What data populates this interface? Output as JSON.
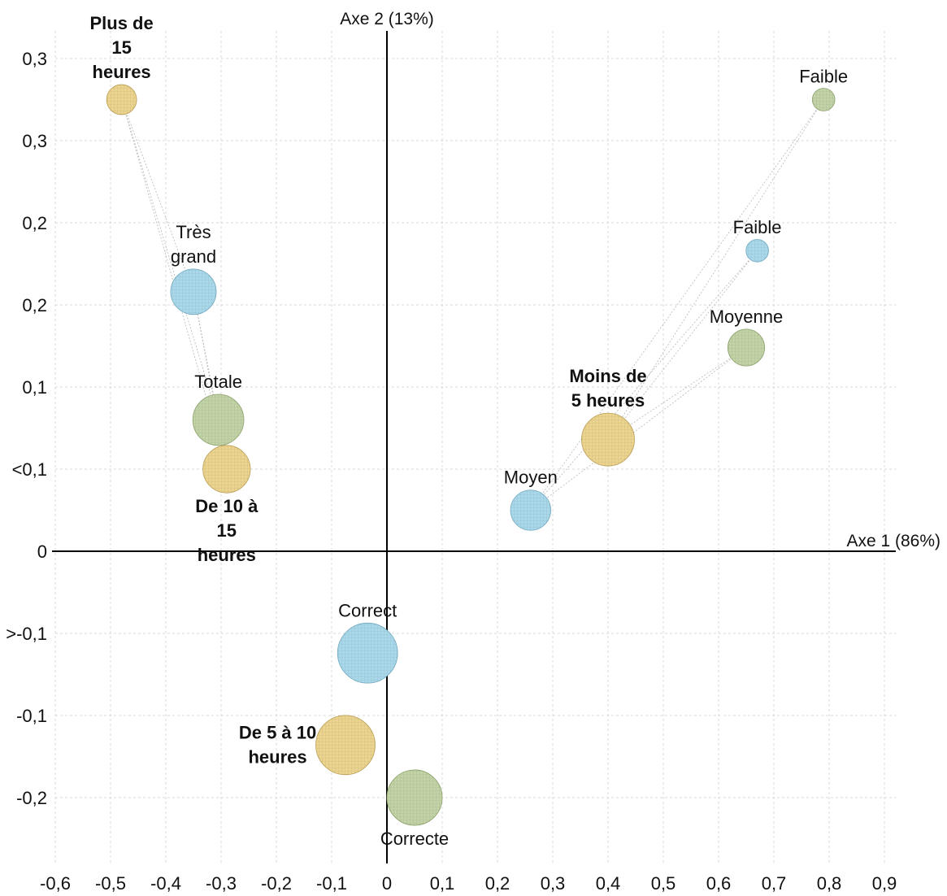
{
  "chart_data": {
    "type": "scatter",
    "subtype": "bubble",
    "title": "",
    "xlabel": "Axe 1 (86%)",
    "ylabel": "Axe 2 (13%)",
    "xlim": [
      -0.6,
      0.92
    ],
    "ylim": [
      -0.3,
      0.33
    ],
    "grid": true,
    "x_ticks": [
      {
        "value": -0.6,
        "label": "-0,6"
      },
      {
        "value": -0.5,
        "label": "-0,5"
      },
      {
        "value": -0.4,
        "label": "-0,4"
      },
      {
        "value": -0.3,
        "label": "-0,3"
      },
      {
        "value": -0.2,
        "label": "-0,2"
      },
      {
        "value": -0.1,
        "label": "-0,1"
      },
      {
        "value": 0.0,
        "label": "0"
      },
      {
        "value": 0.1,
        "label": "0,1"
      },
      {
        "value": 0.2,
        "label": "0,2"
      },
      {
        "value": 0.3,
        "label": "0,3"
      },
      {
        "value": 0.4,
        "label": "0,4"
      },
      {
        "value": 0.5,
        "label": "0,5"
      },
      {
        "value": 0.6,
        "label": "0,6"
      },
      {
        "value": 0.7,
        "label": "0,7"
      },
      {
        "value": 0.8,
        "label": "0,8"
      },
      {
        "value": 0.9,
        "label": "0,9"
      }
    ],
    "y_ticks": [
      {
        "value": 0.3,
        "label": "0,3"
      },
      {
        "value": 0.25,
        "label": "0,3"
      },
      {
        "value": 0.2,
        "label": "0,2"
      },
      {
        "value": 0.15,
        "label": "0,2"
      },
      {
        "value": 0.1,
        "label": "0,1"
      },
      {
        "value": 0.05,
        "label": "<0,1"
      },
      {
        "value": 0.0,
        "label": "0"
      },
      {
        "value": -0.05,
        "label": ">-0,1"
      },
      {
        "value": -0.1,
        "label": "-0,1"
      },
      {
        "value": -0.15,
        "label": "-0,2"
      }
    ],
    "colors": {
      "blue": "#a8d8ea",
      "yellow": "#ecd48e",
      "green": "#c2d3a6"
    },
    "points": [
      {
        "label": "Plus de\n15\nheures",
        "x": -0.48,
        "y": 0.275,
        "size": 1.0,
        "group": "yellow",
        "bold": true,
        "label_pos": "above"
      },
      {
        "label": "Très\ngrand",
        "x": -0.35,
        "y": 0.158,
        "size": 2.3,
        "group": "blue",
        "bold": false,
        "label_pos": "above"
      },
      {
        "label": "Totale",
        "x": -0.305,
        "y": 0.08,
        "size": 2.9,
        "group": "green",
        "bold": false,
        "label_pos": "above"
      },
      {
        "label": "De 10 à\n15\nheures",
        "x": -0.29,
        "y": 0.05,
        "size": 2.5,
        "group": "yellow",
        "bold": true,
        "label_pos": "below"
      },
      {
        "label": "Faible",
        "x": 0.79,
        "y": 0.275,
        "size": 0.6,
        "group": "green",
        "bold": false,
        "label_pos": "above"
      },
      {
        "label": "Faible",
        "x": 0.67,
        "y": 0.183,
        "size": 0.6,
        "group": "blue",
        "bold": false,
        "label_pos": "above"
      },
      {
        "label": "Moyenne",
        "x": 0.65,
        "y": 0.124,
        "size": 1.5,
        "group": "green",
        "bold": false,
        "label_pos": "above"
      },
      {
        "label": "Moins de\n5 heures",
        "x": 0.4,
        "y": 0.068,
        "size": 3.1,
        "group": "yellow",
        "bold": true,
        "label_pos": "above"
      },
      {
        "label": "Moyen",
        "x": 0.26,
        "y": 0.025,
        "size": 1.8,
        "group": "blue",
        "bold": false,
        "label_pos": "above"
      },
      {
        "label": "Correct",
        "x": -0.035,
        "y": -0.062,
        "size": 4.0,
        "group": "blue",
        "bold": false,
        "label_pos": "above"
      },
      {
        "label": "De 5 à 10\nheures",
        "x": -0.075,
        "y": -0.118,
        "size": 3.9,
        "group": "yellow",
        "bold": true,
        "label_pos": "left"
      },
      {
        "label": "Correcte",
        "x": 0.05,
        "y": -0.15,
        "size": 3.4,
        "group": "green",
        "bold": false,
        "label_pos": "below"
      }
    ],
    "connections": [
      [
        0,
        1
      ],
      [
        0,
        2
      ],
      [
        0,
        3
      ],
      [
        1,
        2
      ],
      [
        1,
        3
      ],
      [
        4,
        7
      ],
      [
        5,
        7
      ],
      [
        6,
        7
      ],
      [
        4,
        8
      ],
      [
        5,
        8
      ],
      [
        6,
        8
      ]
    ]
  }
}
